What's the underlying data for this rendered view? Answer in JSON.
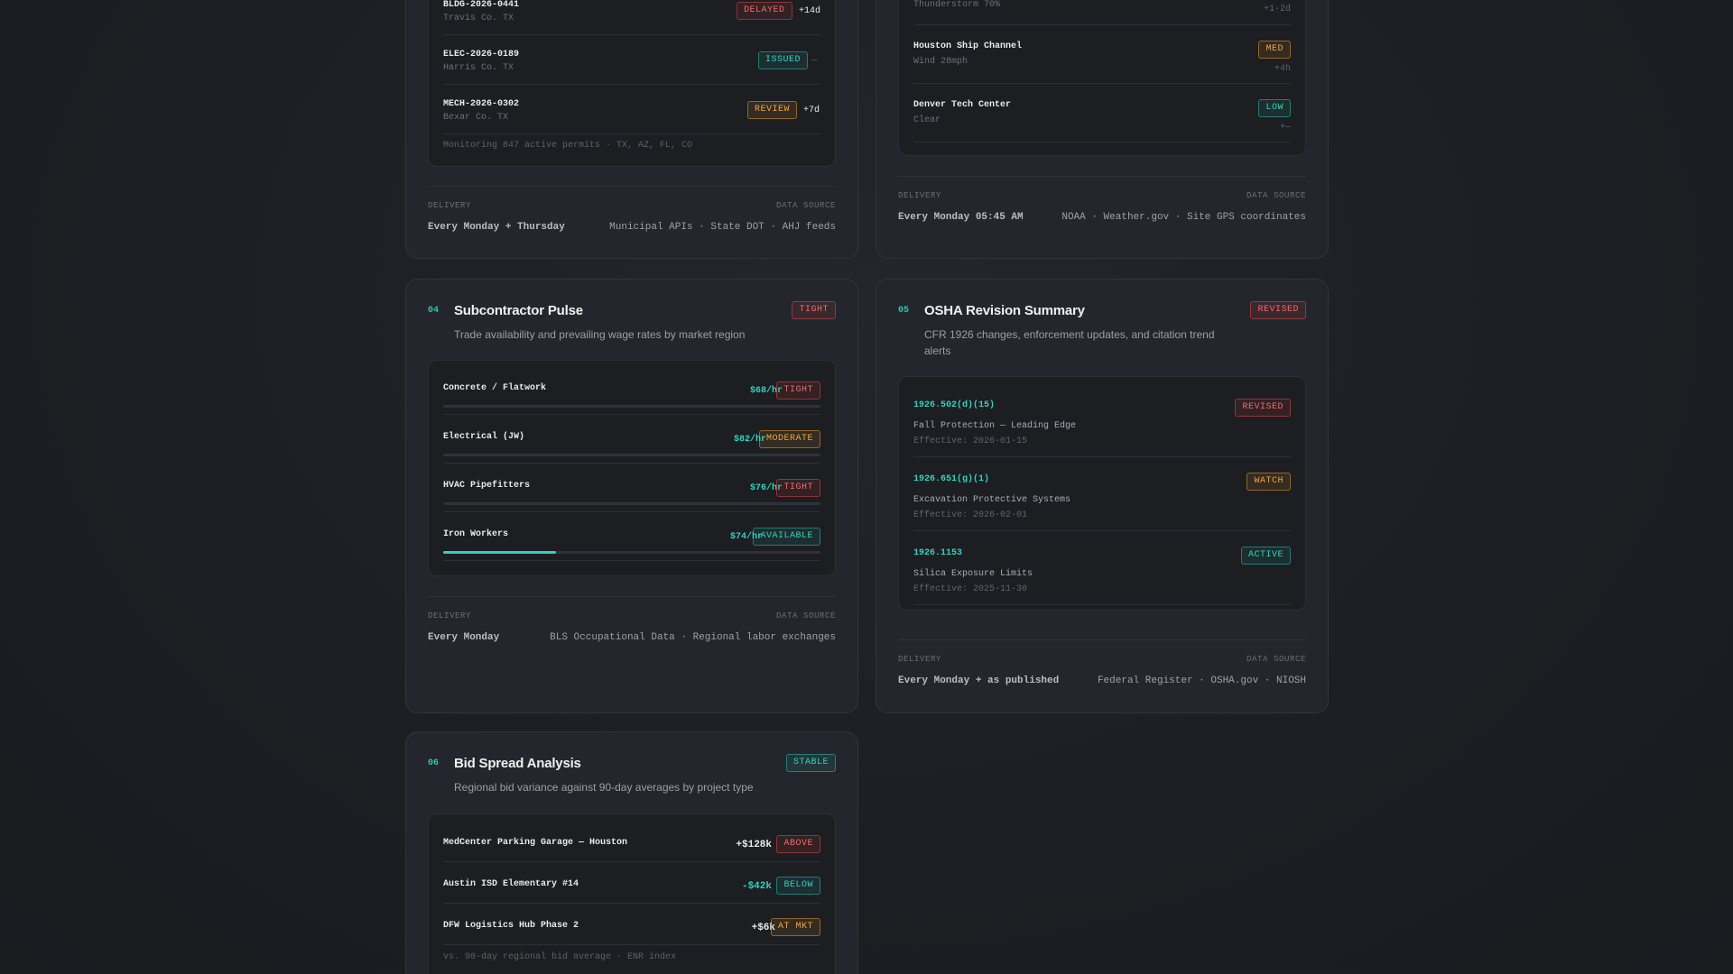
{
  "permits": {
    "rows": [
      {
        "id": "BLDG-2026-0441",
        "county": "Travis Co. TX",
        "status": "DELAYED",
        "delta": "+14d"
      },
      {
        "id": "ELEC-2026-0189",
        "county": "Harris Co. TX",
        "status": "ISSUED",
        "delta": "—"
      },
      {
        "id": "MECH-2026-0302",
        "county": "Bexar Co. TX",
        "status": "REVIEW",
        "delta": "+7d"
      }
    ],
    "note": "Monitoring 847 active permits · TX, AZ, FL, CO",
    "delivery_label": "DELIVERY",
    "delivery_value": "Every Monday + Thursday",
    "source_label": "DATA SOURCE",
    "source_value": "Municipal APIs · State DOT · AHJ feeds"
  },
  "weather": {
    "rows": [
      {
        "site": "",
        "cond": "Thunderstorm 70%",
        "risk": "",
        "delta": "+1-2d"
      },
      {
        "site": "Houston Ship Channel",
        "cond": "Wind 28mph",
        "risk": "MED",
        "delta": "+4h"
      },
      {
        "site": "Denver Tech Center",
        "cond": "Clear",
        "risk": "LOW",
        "delta": "+—"
      }
    ],
    "delivery_label": "DELIVERY",
    "delivery_value": "Every Monday 05:45 AM",
    "source_label": "DATA SOURCE",
    "source_value": "NOAA · Weather.gov · Site GPS coordinates"
  },
  "subcontractor": {
    "num": "04",
    "title": "Subcontractor Pulse",
    "badge": "TIGHT",
    "subtitle": "Trade availability and prevailing wage rates by market region",
    "trades": [
      {
        "name": "Concrete / Flatwork",
        "rate": "$68/hr",
        "status": "TIGHT",
        "availability": 0
      },
      {
        "name": "Electrical (JW)",
        "rate": "$82/hr",
        "status": "MODERATE",
        "availability": 0
      },
      {
        "name": "HVAC Pipefitters",
        "rate": "$76/hr",
        "status": "TIGHT",
        "availability": 0
      },
      {
        "name": "Iron Workers",
        "rate": "$74/hr",
        "status": "AVAILABLE",
        "availability": 0.3
      }
    ],
    "delivery_label": "DELIVERY",
    "delivery_value": "Every Monday",
    "source_label": "DATA SOURCE",
    "source_value": "BLS Occupational Data · Regional labor exchanges"
  },
  "osha": {
    "num": "05",
    "title": "OSHA Revision Summary",
    "badge": "REVISED",
    "subtitle_1": "CFR 1926 changes, enforcement updates, and citation trend",
    "subtitle_2": "alerts",
    "items": [
      {
        "code": "1926.502(d)(15)",
        "desc": "Fall Protection — Leading Edge",
        "effective": "Effective: 2026-01-15",
        "status": "REVISED"
      },
      {
        "code": "1926.651(g)(1)",
        "desc": "Excavation Protective Systems",
        "effective": "Effective: 2026-02-01",
        "status": "WATCH"
      },
      {
        "code": "1926.1153",
        "desc": "Silica Exposure Limits",
        "effective": "Effective: 2025-11-30",
        "status": "ACTIVE"
      }
    ],
    "delivery_label": "DELIVERY",
    "delivery_value": "Every Monday + as published",
    "source_label": "DATA SOURCE",
    "source_value": "Federal Register · OSHA.gov · NIOSH"
  },
  "bids": {
    "num": "06",
    "title": "Bid Spread Analysis",
    "badge": "STABLE",
    "subtitle": "Regional bid variance against 90-day averages by project type",
    "rows": [
      {
        "project": "MedCenter Parking Garage — Houston",
        "amount": "+$128k",
        "status": "ABOVE"
      },
      {
        "project": "Austin ISD Elementary #14",
        "amount": "-$42k",
        "status": "BELOW"
      },
      {
        "project": "DFW Logistics Hub Phase 2",
        "amount": "+$6k",
        "status": "AT MKT"
      }
    ],
    "note": "vs. 90-day regional bid average · ENR index"
  }
}
